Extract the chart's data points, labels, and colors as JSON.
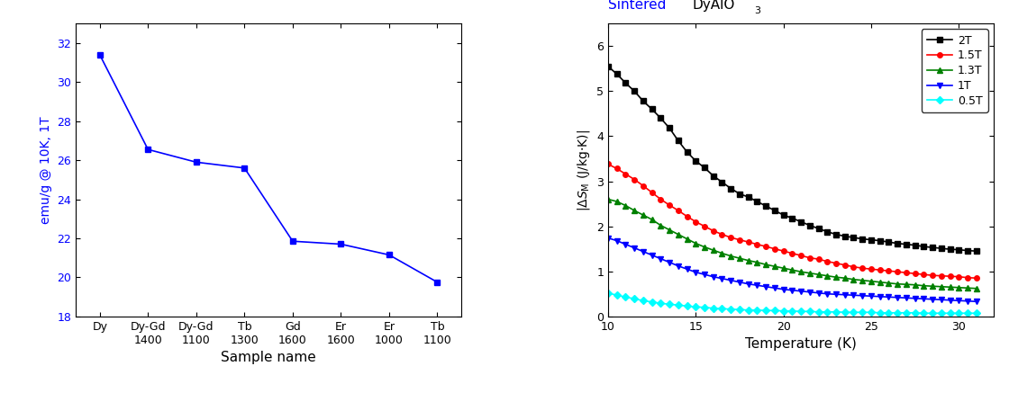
{
  "left_categories": [
    "Dy",
    "Dy-Gd\n1400",
    "Dy-Gd\n1100",
    "Tb\n1300",
    "Gd\n1600",
    "Er\n1600",
    "Er\n1000",
    "Tb\n1100"
  ],
  "left_values": [
    31.4,
    26.55,
    25.9,
    25.6,
    21.85,
    21.7,
    21.15,
    19.75
  ],
  "left_ylabel": "emu/g @ 10K, 1T",
  "left_xlabel": "Sample name",
  "left_ylim": [
    18,
    33
  ],
  "left_yticks": [
    18,
    20,
    22,
    24,
    26,
    28,
    30,
    32
  ],
  "left_color": "#0000FF",
  "right_xlabel": "Temperature (K)",
  "right_ylabel": "|ΔSₘ (J/kg·K)|",
  "right_xlim": [
    10,
    32
  ],
  "right_ylim": [
    0,
    6.5
  ],
  "right_yticks": [
    0,
    1,
    2,
    3,
    4,
    5,
    6
  ],
  "right_xticks": [
    10,
    15,
    20,
    25,
    30
  ],
  "temp_2T": [
    10,
    10.5,
    11,
    11.5,
    12,
    12.5,
    13,
    13.5,
    14,
    14.5,
    15,
    15.5,
    16,
    16.5,
    17,
    17.5,
    18,
    18.5,
    19,
    19.5,
    20,
    20.5,
    21,
    21.5,
    22,
    22.5,
    23,
    23.5,
    24,
    24.5,
    25,
    25.5,
    26,
    26.5,
    27,
    27.5,
    28,
    28.5,
    29,
    29.5,
    30,
    30.5,
    31
  ],
  "vals_2T": [
    5.55,
    5.38,
    5.18,
    5.0,
    4.78,
    4.6,
    4.4,
    4.18,
    3.9,
    3.65,
    3.45,
    3.3,
    3.12,
    2.98,
    2.84,
    2.72,
    2.65,
    2.55,
    2.45,
    2.35,
    2.25,
    2.18,
    2.1,
    2.02,
    1.95,
    1.88,
    1.82,
    1.78,
    1.75,
    1.72,
    1.7,
    1.68,
    1.65,
    1.62,
    1.6,
    1.58,
    1.55,
    1.53,
    1.51,
    1.49,
    1.48,
    1.46,
    1.45
  ],
  "temp_1p5T": [
    10,
    10.5,
    11,
    11.5,
    12,
    12.5,
    13,
    13.5,
    14,
    14.5,
    15,
    15.5,
    16,
    16.5,
    17,
    17.5,
    18,
    18.5,
    19,
    19.5,
    20,
    20.5,
    21,
    21.5,
    22,
    22.5,
    23,
    23.5,
    24,
    24.5,
    25,
    25.5,
    26,
    26.5,
    27,
    27.5,
    28,
    28.5,
    29,
    29.5,
    30,
    30.5,
    31
  ],
  "vals_1p5T": [
    3.38,
    3.28,
    3.16,
    3.04,
    2.9,
    2.75,
    2.6,
    2.47,
    2.35,
    2.22,
    2.1,
    2.0,
    1.9,
    1.82,
    1.75,
    1.7,
    1.65,
    1.6,
    1.55,
    1.5,
    1.45,
    1.4,
    1.35,
    1.3,
    1.27,
    1.22,
    1.18,
    1.14,
    1.1,
    1.07,
    1.05,
    1.03,
    1.01,
    0.99,
    0.97,
    0.95,
    0.93,
    0.91,
    0.9,
    0.89,
    0.88,
    0.86,
    0.85
  ],
  "temp_1p3T": [
    10,
    10.5,
    11,
    11.5,
    12,
    12.5,
    13,
    13.5,
    14,
    14.5,
    15,
    15.5,
    16,
    16.5,
    17,
    17.5,
    18,
    18.5,
    19,
    19.5,
    20,
    20.5,
    21,
    21.5,
    22,
    22.5,
    23,
    23.5,
    24,
    24.5,
    25,
    25.5,
    26,
    26.5,
    27,
    27.5,
    28,
    28.5,
    29,
    29.5,
    30,
    30.5,
    31
  ],
  "vals_1p3T": [
    2.6,
    2.55,
    2.46,
    2.35,
    2.25,
    2.15,
    2.02,
    1.92,
    1.82,
    1.72,
    1.62,
    1.54,
    1.47,
    1.4,
    1.34,
    1.29,
    1.24,
    1.2,
    1.15,
    1.11,
    1.07,
    1.03,
    0.99,
    0.96,
    0.93,
    0.9,
    0.87,
    0.85,
    0.82,
    0.8,
    0.78,
    0.76,
    0.74,
    0.72,
    0.71,
    0.7,
    0.68,
    0.67,
    0.66,
    0.65,
    0.64,
    0.63,
    0.62
  ],
  "temp_1T": [
    10,
    10.5,
    11,
    11.5,
    12,
    12.5,
    13,
    13.5,
    14,
    14.5,
    15,
    15.5,
    16,
    16.5,
    17,
    17.5,
    18,
    18.5,
    19,
    19.5,
    20,
    20.5,
    21,
    21.5,
    22,
    22.5,
    23,
    23.5,
    24,
    24.5,
    25,
    25.5,
    26,
    26.5,
    27,
    27.5,
    28,
    28.5,
    29,
    29.5,
    30,
    30.5,
    31
  ],
  "vals_1T": [
    1.74,
    1.68,
    1.6,
    1.52,
    1.44,
    1.36,
    1.28,
    1.2,
    1.12,
    1.05,
    0.98,
    0.93,
    0.88,
    0.84,
    0.8,
    0.76,
    0.72,
    0.69,
    0.66,
    0.63,
    0.6,
    0.58,
    0.56,
    0.54,
    0.52,
    0.5,
    0.49,
    0.48,
    0.47,
    0.46,
    0.45,
    0.44,
    0.43,
    0.42,
    0.41,
    0.4,
    0.39,
    0.38,
    0.37,
    0.36,
    0.35,
    0.34,
    0.33
  ],
  "temp_0p5T": [
    10,
    10.5,
    11,
    11.5,
    12,
    12.5,
    13,
    13.5,
    14,
    14.5,
    15,
    15.5,
    16,
    16.5,
    17,
    17.5,
    18,
    18.5,
    19,
    19.5,
    20,
    20.5,
    21,
    21.5,
    22,
    22.5,
    23,
    23.5,
    24,
    24.5,
    25,
    25.5,
    26,
    26.5,
    27,
    27.5,
    28,
    28.5,
    29,
    29.5,
    30,
    30.5,
    31
  ],
  "vals_0p5T": [
    0.52,
    0.47,
    0.43,
    0.39,
    0.35,
    0.32,
    0.29,
    0.27,
    0.25,
    0.23,
    0.21,
    0.2,
    0.18,
    0.17,
    0.16,
    0.15,
    0.14,
    0.14,
    0.13,
    0.13,
    0.12,
    0.12,
    0.11,
    0.11,
    0.1,
    0.1,
    0.1,
    0.09,
    0.09,
    0.09,
    0.09,
    0.08,
    0.08,
    0.08,
    0.08,
    0.08,
    0.07,
    0.07,
    0.07,
    0.07,
    0.07,
    0.07,
    0.07
  ]
}
